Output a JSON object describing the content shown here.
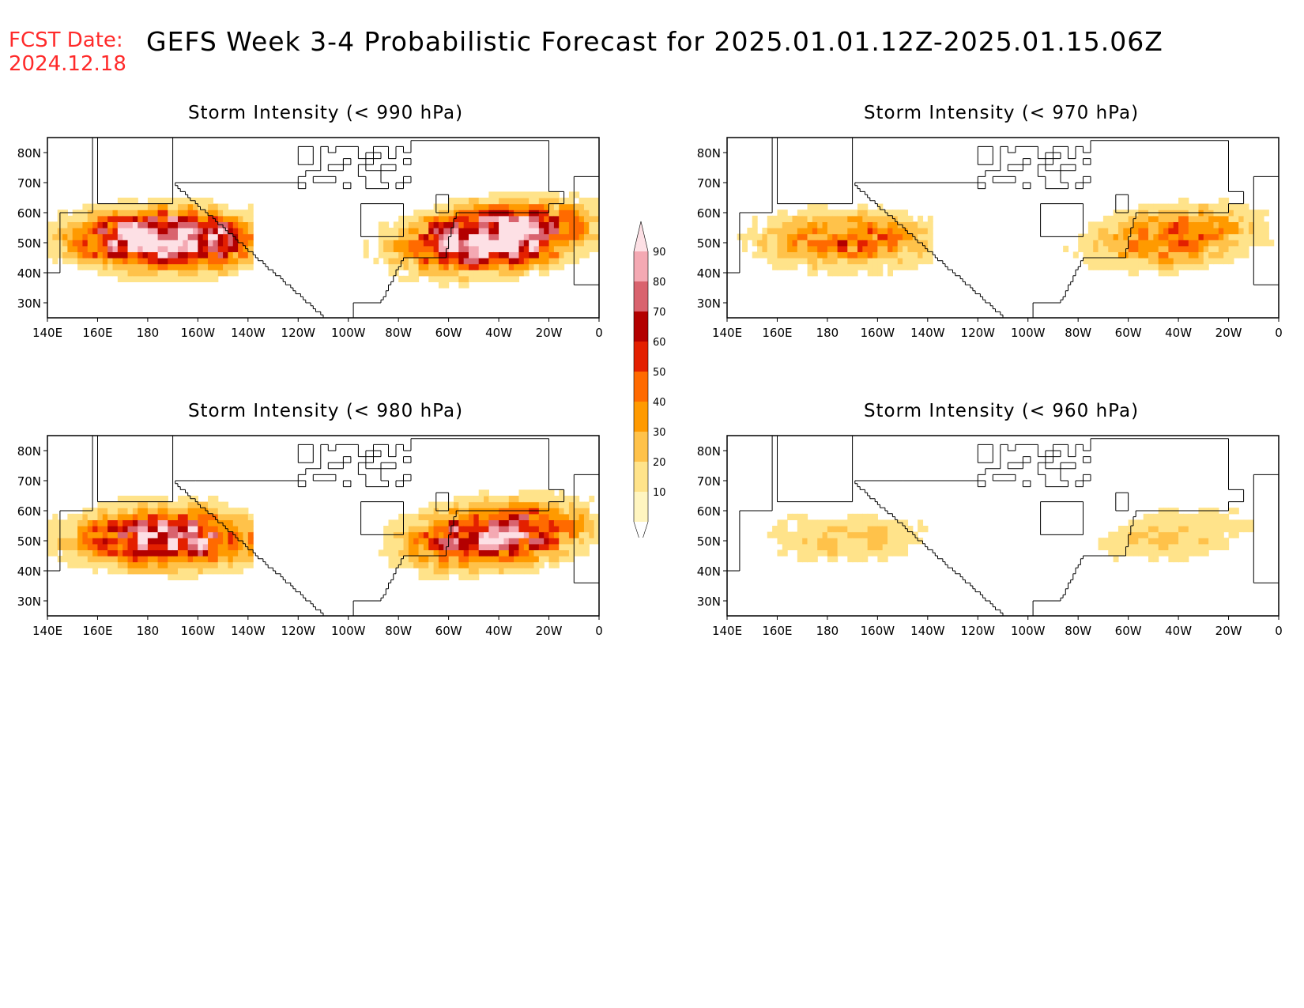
{
  "header": {
    "fcst_label": "FCST Date:",
    "fcst_date": "2024.12.18",
    "title": "GEFS Week 3-4 Probabilistic Forecast for 2025.01.01.12Z-2025.01.15.06Z"
  },
  "axes": {
    "lon_labels": [
      "140E",
      "160E",
      "180",
      "160W",
      "140W",
      "120W",
      "100W",
      "80W",
      "60W",
      "40W",
      "20W",
      "0"
    ],
    "lat_labels": [
      "80N",
      "70N",
      "60N",
      "50N",
      "40N",
      "30N"
    ]
  },
  "panels": [
    {
      "id": "p990",
      "title": "Storm Intensity (< 990 hPa)",
      "level": "high"
    },
    {
      "id": "p970",
      "title": "Storm Intensity (< 970 hPa)",
      "level": "low"
    },
    {
      "id": "p980",
      "title": "Storm Intensity (< 980 hPa)",
      "level": "mid"
    },
    {
      "id": "p960",
      "title": "Storm Intensity (< 960 hPa)",
      "level": "vlow"
    }
  ],
  "legend": {
    "levels": [
      "10",
      "20",
      "30",
      "40",
      "50",
      "60",
      "70",
      "80",
      "90"
    ],
    "colors": [
      "#fff5c0",
      "#ffe38a",
      "#ffc24a",
      "#ff9a00",
      "#ff6a00",
      "#e32000",
      "#b30000",
      "#d9636e",
      "#f4a9b3",
      "#fde0e5"
    ]
  }
}
